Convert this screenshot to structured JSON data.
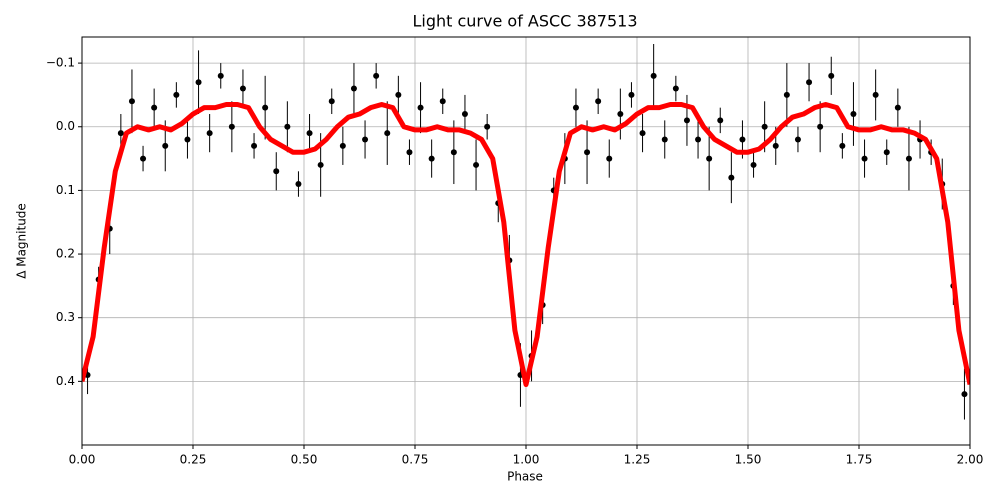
{
  "chart_data": {
    "type": "scatter",
    "title": "Light curve of ASCC 387513",
    "x_label": "Phase",
    "y_label": "Δ Magnitude",
    "xlim": [
      0,
      2
    ],
    "ylim": [
      -0.141,
      0.5
    ],
    "y_inverted": true,
    "grid": true,
    "xticks": [
      {
        "value": 0,
        "label": "0.00"
      },
      0.25,
      {
        "value": 0.5,
        "label": "0.50"
      },
      0.75,
      {
        "value": 1,
        "label": "1.00"
      },
      1.25,
      {
        "value": 1.5,
        "label": "1.50"
      },
      1.75,
      {
        "value": 2,
        "label": "2.00"
      }
    ],
    "yticks": [
      {
        "value": -0.1,
        "label": "−0.1"
      },
      {
        "value": 0,
        "label": "0.0"
      },
      0.1,
      0.2,
      0.3,
      0.4
    ],
    "series": [
      {
        "color": "#000000",
        "marker": "point",
        "x": [
          0.0125,
          0.0375,
          0.0625,
          0.0875,
          0.1125,
          0.1375,
          0.1625,
          0.1875,
          0.2125,
          0.2375,
          0.2625,
          0.2875,
          0.3125,
          0.3375,
          0.3625,
          0.3875,
          0.4125,
          0.4375,
          0.4625,
          0.4875,
          0.5125,
          0.5375,
          0.5625,
          0.5875,
          0.6125,
          0.6375,
          0.6625,
          0.6875,
          0.7125,
          0.7375,
          0.7625,
          0.7875,
          0.8125,
          0.8375,
          0.8625,
          0.8875,
          0.9125,
          0.9375,
          0.9625,
          0.9875,
          1.0125,
          1.0375,
          1.0625,
          1.0875,
          1.1125,
          1.1375,
          1.1625,
          1.1875,
          1.2125,
          1.2375,
          1.2625,
          1.2875,
          1.3125,
          1.3375,
          1.3625,
          1.3875,
          1.4125,
          1.4375,
          1.4625,
          1.4875,
          1.5125,
          1.5375,
          1.5625,
          1.5875,
          1.6125,
          1.6375,
          1.6625,
          1.6875,
          1.7125,
          1.7375,
          1.7625,
          1.7875,
          1.8125,
          1.8375,
          1.8625,
          1.8875,
          1.9125,
          1.9375,
          1.9625,
          1.9875
        ],
        "values": [
          0.39,
          0.24,
          0.16,
          0.01,
          -0.04,
          0.05,
          -0.03,
          0.03,
          -0.05,
          0.02,
          -0.07,
          0.01,
          -0.08,
          0.0,
          -0.06,
          0.03,
          -0.03,
          0.07,
          0.0,
          0.09,
          0.01,
          0.06,
          -0.04,
          0.03,
          -0.06,
          0.02,
          -0.08,
          0.01,
          -0.05,
          0.04,
          -0.03,
          0.05,
          -0.04,
          0.04,
          -0.02,
          0.06,
          0.0,
          0.12,
          0.21,
          0.39,
          0.36,
          0.28,
          0.1,
          0.05,
          -0.03,
          0.04,
          -0.04,
          0.05,
          -0.02,
          -0.05,
          0.01,
          -0.08,
          0.02,
          -0.06,
          -0.01,
          0.02,
          0.05,
          -0.01,
          0.08,
          0.02,
          0.06,
          0.0,
          0.03,
          -0.05,
          0.02,
          -0.07,
          0.0,
          -0.08,
          0.03,
          -0.02,
          0.05,
          -0.05,
          0.04,
          -0.03,
          0.05,
          0.02,
          0.04,
          0.09,
          0.25,
          0.42
        ],
        "errors": [
          0.03,
          0.02,
          0.04,
          0.03,
          0.05,
          0.02,
          0.03,
          0.04,
          0.02,
          0.03,
          0.05,
          0.03,
          0.02,
          0.04,
          0.03,
          0.02,
          0.05,
          0.03,
          0.04,
          0.02,
          0.03,
          0.05,
          0.02,
          0.03,
          0.04,
          0.03,
          0.02,
          0.05,
          0.03,
          0.02,
          0.04,
          0.03,
          0.02,
          0.05,
          0.03,
          0.04,
          0.02,
          0.03,
          0.04,
          0.05,
          0.04,
          0.03,
          0.02,
          0.04,
          0.03,
          0.05,
          0.02,
          0.03,
          0.04,
          0.02,
          0.03,
          0.05,
          0.03,
          0.02,
          0.04,
          0.03,
          0.05,
          0.02,
          0.04,
          0.03,
          0.02,
          0.04,
          0.03,
          0.05,
          0.02,
          0.03,
          0.04,
          0.03,
          0.02,
          0.05,
          0.03,
          0.04,
          0.02,
          0.03,
          0.05,
          0.03,
          0.02,
          0.04,
          0.03,
          0.04
        ]
      },
      {
        "color": "#ff0000",
        "marker": "line",
        "x": [
          0,
          0.025,
          0.05,
          0.075,
          0.1,
          0.125,
          0.15,
          0.175,
          0.2,
          0.225,
          0.25,
          0.275,
          0.3,
          0.325,
          0.35,
          0.375,
          0.4,
          0.425,
          0.45,
          0.475,
          0.5,
          0.525,
          0.55,
          0.575,
          0.6,
          0.625,
          0.65,
          0.675,
          0.7,
          0.725,
          0.75,
          0.775,
          0.8,
          0.825,
          0.85,
          0.875,
          0.9,
          0.925,
          0.95,
          0.975,
          1,
          1.025,
          1.05,
          1.075,
          1.1,
          1.125,
          1.15,
          1.175,
          1.2,
          1.225,
          1.25,
          1.275,
          1.3,
          1.325,
          1.35,
          1.375,
          1.4,
          1.425,
          1.45,
          1.475,
          1.5,
          1.525,
          1.55,
          1.575,
          1.6,
          1.625,
          1.65,
          1.675,
          1.7,
          1.725,
          1.75,
          1.775,
          1.8,
          1.825,
          1.85,
          1.875,
          1.9,
          1.925,
          1.95,
          1.975,
          2
        ],
        "values": [
          0.4,
          0.33,
          0.19,
          0.07,
          0.01,
          0.0,
          0.005,
          0.0,
          0.005,
          -0.005,
          -0.02,
          -0.03,
          -0.03,
          -0.035,
          -0.035,
          -0.03,
          0.0,
          0.02,
          0.03,
          0.04,
          0.04,
          0.035,
          0.02,
          0.0,
          -0.015,
          -0.02,
          -0.03,
          -0.035,
          -0.03,
          0.0,
          0.005,
          0.005,
          0.0,
          0.005,
          0.005,
          0.01,
          0.02,
          0.05,
          0.15,
          0.32,
          0.405,
          0.33,
          0.19,
          0.07,
          0.01,
          0.0,
          0.005,
          0.0,
          0.005,
          -0.005,
          -0.02,
          -0.03,
          -0.03,
          -0.035,
          -0.035,
          -0.03,
          0.0,
          0.02,
          0.03,
          0.04,
          0.04,
          0.035,
          0.02,
          0.0,
          -0.015,
          -0.02,
          -0.03,
          -0.035,
          -0.03,
          0.0,
          0.005,
          0.005,
          0.0,
          0.005,
          0.005,
          0.01,
          0.02,
          0.05,
          0.15,
          0.32,
          0.405
        ]
      }
    ]
  }
}
